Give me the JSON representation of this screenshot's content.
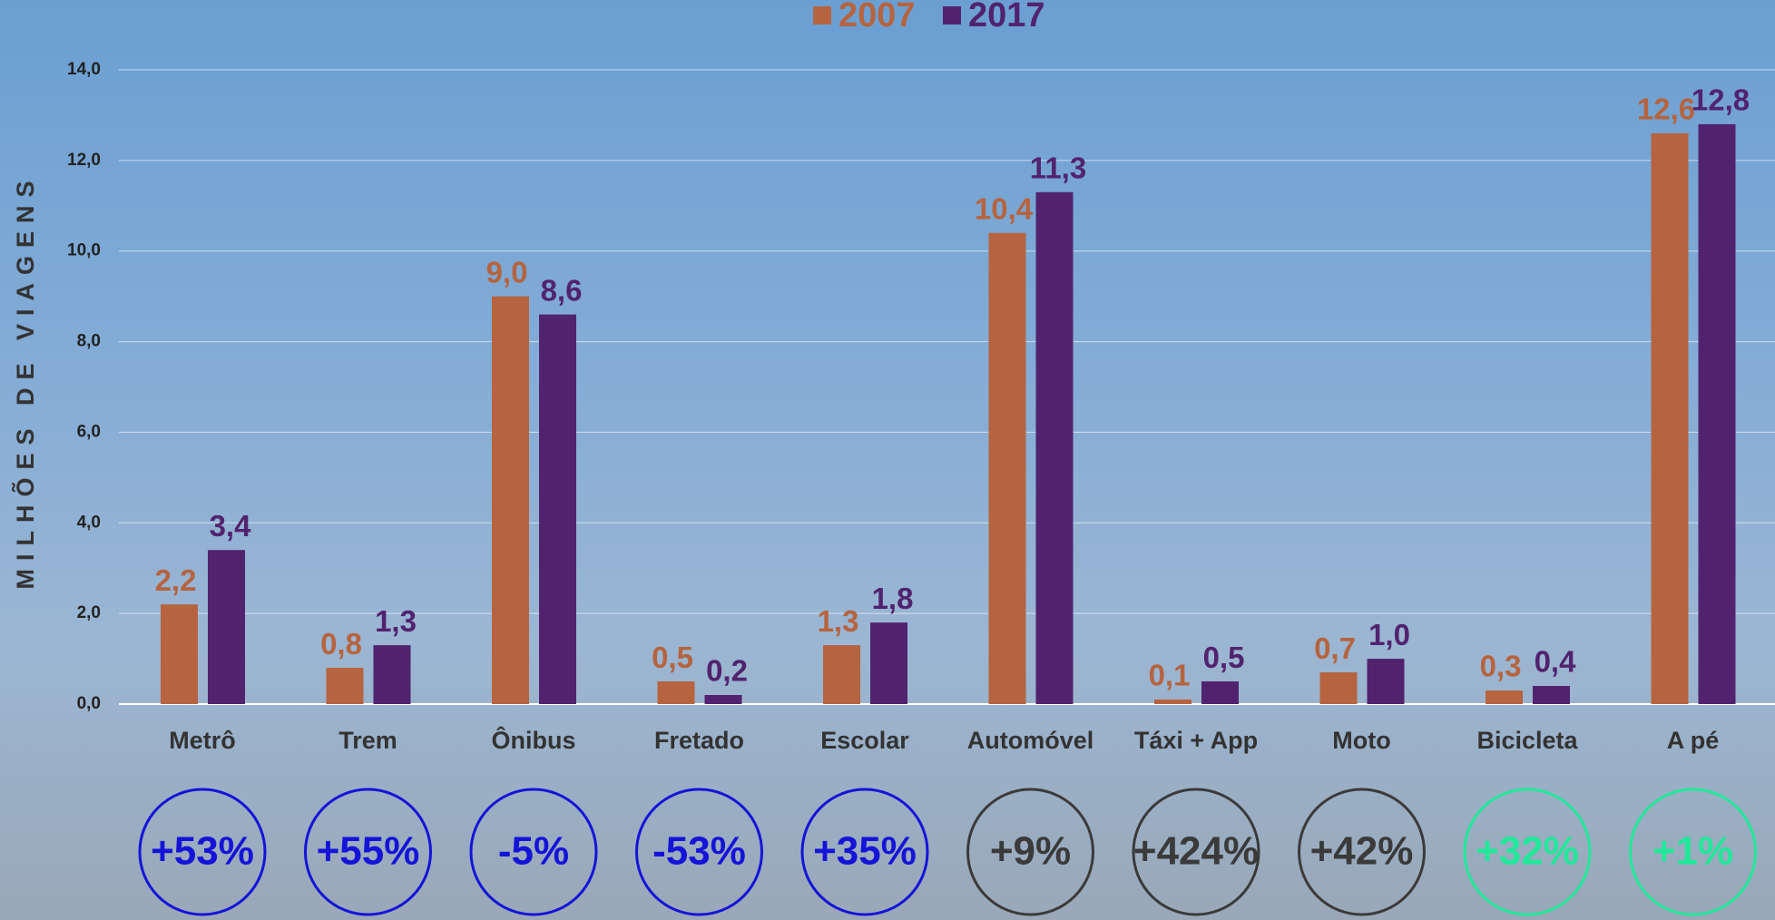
{
  "chart_data": {
    "type": "bar",
    "y_axis_label": "MILHÕES DE VIAGENS",
    "categories": [
      "Metrô",
      "Trem",
      "Ônibus",
      "Fretado",
      "Escolar",
      "Automóvel",
      "Táxi + App",
      "Moto",
      "Bicicleta",
      "A pé"
    ],
    "series": [
      {
        "name": "2007",
        "color": "#b5643f",
        "values": [
          2.2,
          0.8,
          9.0,
          0.5,
          1.3,
          10.4,
          0.1,
          0.7,
          0.3,
          12.6
        ],
        "value_labels": [
          "2,2",
          "0,8",
          "9,0",
          "0,5",
          "1,3",
          "10,4",
          "0,1",
          "0,7",
          "0,3",
          "12,6"
        ]
      },
      {
        "name": "2017",
        "color": "#51236e",
        "values": [
          3.4,
          1.3,
          8.6,
          0.2,
          1.8,
          11.3,
          0.5,
          1.0,
          0.4,
          12.8
        ],
        "value_labels": [
          "3,4",
          "1,3",
          "8,6",
          "0,2",
          "1,8",
          "11,3",
          "0,5",
          "1,0",
          "0,4",
          "12,8"
        ]
      }
    ],
    "changes": [
      {
        "label": "+53%",
        "color": "#1414d8"
      },
      {
        "label": "+55%",
        "color": "#1414d8"
      },
      {
        "label": "-5%",
        "color": "#1414d8"
      },
      {
        "label": "-53%",
        "color": "#1414d8"
      },
      {
        "label": "+35%",
        "color": "#1414d8"
      },
      {
        "label": "+9%",
        "color": "#3a3a3a"
      },
      {
        "label": "+424%",
        "color": "#3a3a3a"
      },
      {
        "label": "+42%",
        "color": "#3a3a3a"
      },
      {
        "label": "+32%",
        "color": "#22e89a"
      },
      {
        "label": "+1%",
        "color": "#22e89a"
      }
    ],
    "ylim": [
      0,
      14
    ],
    "yticks": [
      {
        "value": 0,
        "label": "0,0"
      },
      {
        "value": 2,
        "label": "2,0"
      },
      {
        "value": 4,
        "label": "4,0"
      },
      {
        "value": 6,
        "label": "6,0"
      },
      {
        "value": 8,
        "label": "8,0"
      },
      {
        "value": 10,
        "label": "10,0"
      },
      {
        "value": 12,
        "label": "12,0"
      },
      {
        "value": 14,
        "label": "14,0"
      }
    ],
    "grid": true
  }
}
